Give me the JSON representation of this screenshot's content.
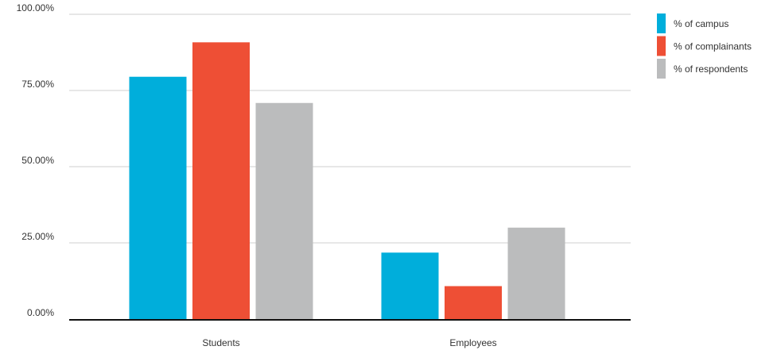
{
  "chart_data": {
    "type": "bar",
    "categories": [
      "Students",
      "Employees"
    ],
    "series": [
      {
        "name": "% of campus",
        "color": "#00AEDB",
        "values": [
          79.5,
          21.8
        ]
      },
      {
        "name": "% of complainants",
        "color": "#EE4F35",
        "values": [
          90.8,
          10.8
        ]
      },
      {
        "name": "% of respondents",
        "color": "#BBBCBD",
        "values": [
          70.9,
          30.0
        ]
      }
    ],
    "y_ticks": [
      "0.00%",
      "25.00%",
      "50.00%",
      "75.00%",
      "100.00%"
    ],
    "y_tick_values": [
      0,
      25,
      50,
      75,
      100
    ],
    "ylim": [
      0,
      100
    ],
    "grid": true,
    "legend_position": "top-right",
    "title": "",
    "xlabel": "",
    "ylabel": ""
  }
}
